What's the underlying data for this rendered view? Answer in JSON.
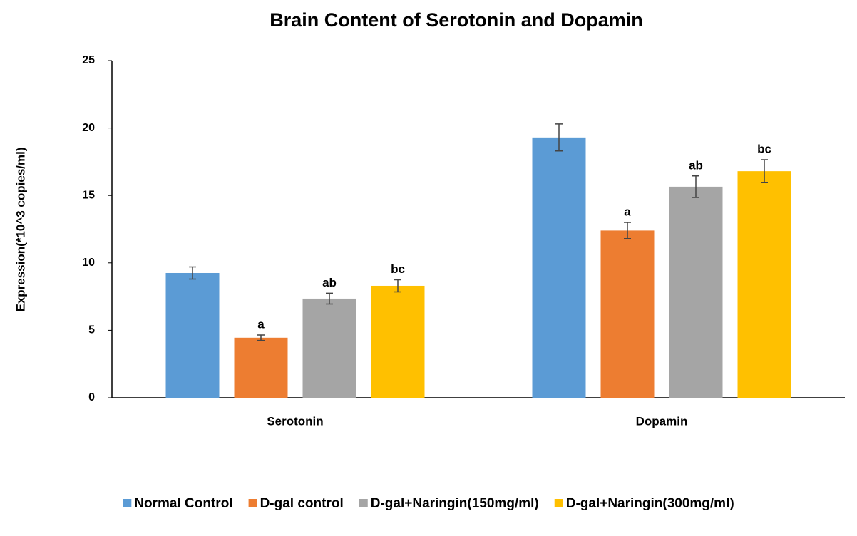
{
  "chart_data": {
    "type": "bar",
    "title": "Brain Content of Serotonin and Dopamin",
    "y_label": "Expression(*10^3 copies/ml)",
    "categories": [
      "Serotonin",
      "Dopamin"
    ],
    "series": [
      {
        "name": "Normal Control",
        "color": "#5b9bd5",
        "values": [
          9.25,
          19.3
        ],
        "errors": [
          0.45,
          1.0
        ],
        "labels": [
          null,
          null
        ]
      },
      {
        "name": "D-gal control",
        "color": "#ed7d31",
        "values": [
          4.45,
          12.4
        ],
        "errors": [
          0.2,
          0.6
        ],
        "labels": [
          "a",
          "a"
        ]
      },
      {
        "name": "D-gal+Naringin(150mg/ml)",
        "color": "#a5a5a5",
        "values": [
          7.35,
          15.65
        ],
        "errors": [
          0.4,
          0.8
        ],
        "labels": [
          "ab",
          "ab"
        ]
      },
      {
        "name": "D-gal+Naringin(300mg/ml)",
        "color": "#ffc000",
        "values": [
          8.3,
          16.8
        ],
        "errors": [
          0.45,
          0.85
        ],
        "labels": [
          "bc",
          "bc"
        ]
      }
    ],
    "ylim": [
      0,
      25
    ],
    "yticks": [
      0,
      5,
      10,
      15,
      20,
      25
    ],
    "grid": false,
    "legend": "bottom"
  }
}
